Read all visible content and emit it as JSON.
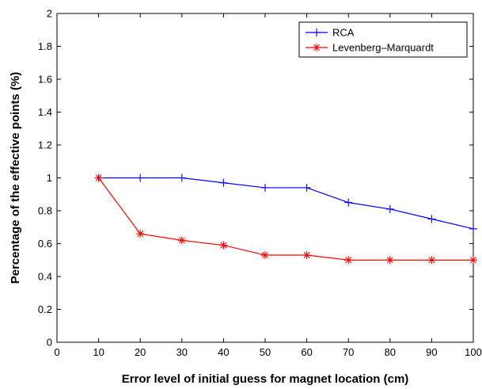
{
  "chart_data": {
    "type": "line",
    "title": "",
    "xlabel": "Error level of initial guess for magnet location (cm)",
    "ylabel": "Percentage of the effective points (%)",
    "xlim": [
      0,
      100
    ],
    "ylim": [
      0,
      2
    ],
    "xticks": [
      0,
      10,
      20,
      30,
      40,
      50,
      60,
      70,
      80,
      90,
      100
    ],
    "xtick_labels": [
      "0",
      "10",
      "20",
      "30",
      "40",
      "50",
      "60",
      "70",
      "80",
      "90",
      "100"
    ],
    "yticks": [
      0,
      0.2,
      0.4,
      0.6,
      0.8,
      1,
      1.2,
      1.4,
      1.6,
      1.8,
      2
    ],
    "ytick_labels": [
      "0",
      "0.2",
      "0.4",
      "0.6",
      "0.8",
      "1",
      "1.2",
      "1.4",
      "1.6",
      "1.8",
      "2"
    ],
    "grid": false,
    "legend_position": "top-right",
    "x": [
      10,
      20,
      30,
      40,
      50,
      60,
      70,
      80,
      90,
      100
    ],
    "series": [
      {
        "name": "RCA",
        "color": "#0000ff",
        "marker": "plus",
        "values": [
          1.0,
          1.0,
          1.0,
          0.97,
          0.94,
          0.94,
          0.85,
          0.81,
          0.75,
          0.69
        ]
      },
      {
        "name": "Levenberg–Marquardt",
        "color": "#ff0000",
        "marker": "asterisk",
        "values": [
          1.0,
          0.66,
          0.62,
          0.59,
          0.53,
          0.53,
          0.5,
          0.5,
          0.5,
          0.5
        ]
      }
    ]
  }
}
